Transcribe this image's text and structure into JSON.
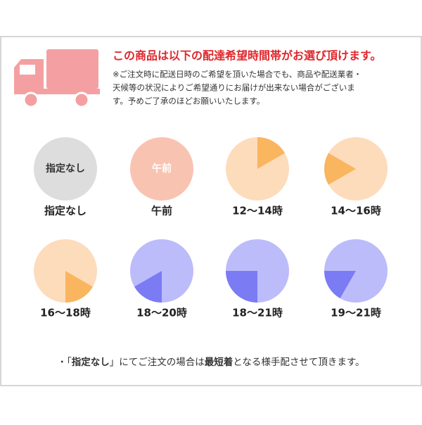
{
  "header": {
    "title": "この商品は以下の配達希望時間帯がお選び頂けます。",
    "note_lines": [
      "※ご注文時に配送日時のご希望を頂いた場合でも、商品や配送業者・",
      "天候等の状況によりご希望通りにお届けが出来ない場合がございま",
      "す。予めご了承のほどお願いいたします。"
    ]
  },
  "slots": [
    {
      "label": "指定なし",
      "icon_text": "指定なし"
    },
    {
      "label": "午前",
      "icon_text": "午前"
    },
    {
      "label": "12～14時"
    },
    {
      "label": "14～16時"
    },
    {
      "label": "16～18時"
    },
    {
      "label": "18～20時"
    },
    {
      "label": "18～21時"
    },
    {
      "label": "19～21時"
    }
  ],
  "footer": {
    "parts": [
      "・「",
      "指定なし",
      "」にてご注文の場合は",
      "最短着",
      "となる様手配させて頂きます。"
    ]
  }
}
